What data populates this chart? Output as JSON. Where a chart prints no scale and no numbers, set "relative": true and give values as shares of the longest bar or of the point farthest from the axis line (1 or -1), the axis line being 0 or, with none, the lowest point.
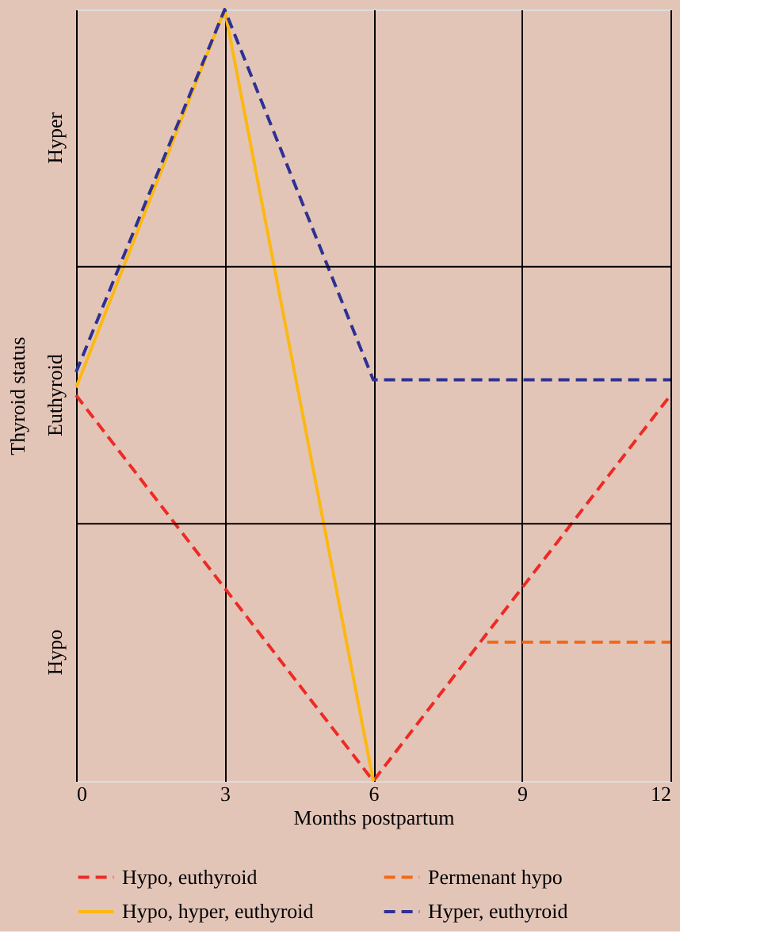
{
  "chart_data": {
    "type": "line",
    "relative": true,
    "xlabel": "Months postpartum",
    "ylabel": "Thyroid status",
    "xlim": [
      0,
      12
    ],
    "xticks": [
      0,
      3,
      6,
      9,
      12
    ],
    "annotations": [
      "Hypo",
      "Euthyroid",
      "Hyper"
    ],
    "grid": true,
    "legend": "bottom",
    "marker": "none",
    "series": [
      {
        "name": "Hypo, euthyroid",
        "color": "#ee2a24",
        "line_style": "dashed",
        "x": [
          0,
          6,
          12
        ],
        "values": [
          0.5,
          0,
          0.5
        ]
      },
      {
        "name": "Permenant hypo",
        "color": "#f26a1b",
        "line_style": "dashed",
        "x": [
          8.3,
          12
        ],
        "values": [
          0.18,
          0.18
        ]
      },
      {
        "name": "Hypo, hyper, euthyroid",
        "color": "#fcb813",
        "line_style": "solid",
        "x": [
          0,
          3,
          6
        ],
        "values": [
          0.51,
          1,
          0
        ]
      },
      {
        "name": "Hyper, euthyroid",
        "color": "#2e3192",
        "line_style": "dashed",
        "x": [
          0,
          3,
          6,
          12
        ],
        "values": [
          0.53,
          1,
          0.52,
          0.52
        ]
      }
    ]
  }
}
